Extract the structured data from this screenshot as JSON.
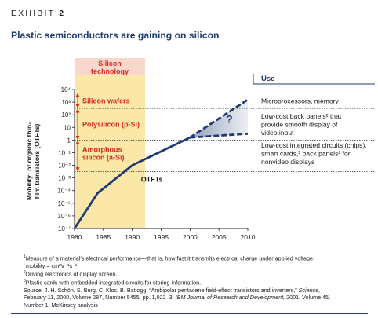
{
  "header": {
    "exhibit_word": "EXHIBIT",
    "exhibit_number": "2",
    "title": "Plastic semiconductors are gaining on silicon"
  },
  "chart_data": {
    "type": "line",
    "title": "Plastic semiconductors are gaining on silicon",
    "ylabel": "Mobility of organic thin-film transistors (OTFTs)",
    "ylabel_lines": [
      "Mobility¹ of organic thin-",
      "film transistors (OTFTs)"
    ],
    "xlabel": "",
    "x_range": [
      1980,
      2010
    ],
    "x_ticks": [
      1980,
      1985,
      1990,
      1995,
      2000,
      2005,
      2010
    ],
    "y_scale": "log",
    "y_range_exp": [
      -7,
      4
    ],
    "y_tick_labels": [
      "10⁻⁷",
      "10⁻⁶",
      "10⁻⁵",
      "10⁻⁴",
      "10⁻³",
      "10⁻²",
      "10⁻¹",
      "1",
      "10",
      "10²",
      "10³",
      "10⁴"
    ],
    "series": [
      {
        "name": "OTFTs",
        "x": [
          1980,
          1984,
          1990,
          2000
        ],
        "log10_y": [
          -7,
          -4.2,
          -2,
          0.2
        ]
      }
    ],
    "projection": {
      "x": [
        2000,
        2010
      ],
      "upper_log10_y": [
        0.2,
        3.2
      ],
      "lower_log10_y": [
        0.2,
        0.5
      ],
      "label": "?"
    },
    "silicon_technology": {
      "title": [
        "Silicon",
        "technology"
      ],
      "bands": [
        {
          "label": [
            "Silicon wafers"
          ],
          "log10_range": [
            2.5,
            3.75
          ]
        },
        {
          "label": [
            "Polysilicon (p-Si)"
          ],
          "log10_range": [
            0,
            2.5
          ]
        },
        {
          "label": [
            "Amorphous",
            "silicon (a-Si)"
          ],
          "log10_range": [
            -2.5,
            0
          ]
        }
      ],
      "boundaries_log10": [
        2.5,
        0,
        -2.5
      ]
    },
    "use": {
      "title": "Use",
      "items": [
        {
          "lines": [
            "Microprocessors, memory"
          ]
        },
        {
          "lines": [
            "Low-cost back panels² that",
            "provide smooth display of",
            "video input"
          ]
        },
        {
          "lines": [
            "Low-cost integrated circuits (chips),",
            "smart cards,³ back panels² for",
            "nonvideo displays"
          ]
        }
      ]
    },
    "series_label": "OTFTs",
    "grid": false,
    "colors": {
      "line": "#1f3b73",
      "band": "#fbe8a8",
      "band_header": "#f9d7cc",
      "accent_red": "#d42a1e",
      "rule": "#1f3b73"
    }
  },
  "footnotes": {
    "note1": "Measure of a material’s electrical performance—that is, how fast it transmits electrical charge under applied voltage;",
    "note1b": "mobility = cm²V⁻¹s⁻¹.",
    "note2": "Driving electronics of display screen.",
    "note3": "Plastic cards with embedded integrated circuits for storing information.",
    "source1": "Source: J. H. Schön, S. Berg, C. Kloc, B. Batlogg, “Ambipolar pentacene field-effect transistors and inverters,” ",
    "source1_journal": "Science,",
    "source2": "February 11, 2000, Volume 287, Number 5455, pp. 1,022–3; ",
    "source2_journal": "IBM Journal of Research and Development,",
    "source2_end": " 2001, Volume 45,",
    "source3": "Number 1; McKinsey analysis"
  }
}
